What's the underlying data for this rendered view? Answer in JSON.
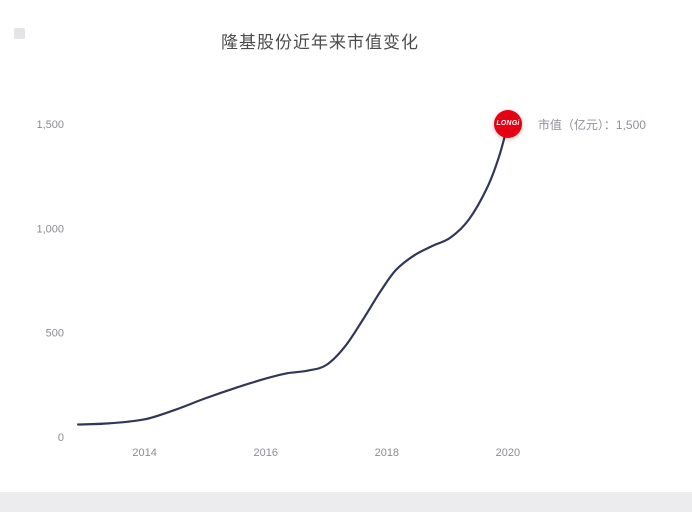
{
  "page": {
    "background": "#ffffff",
    "footer_strip_color": "#ececef"
  },
  "chart_data": {
    "type": "line",
    "title": "隆基股份近年来市值变化",
    "series_name": "市值（亿元）",
    "x": [
      2012.9,
      2013.4,
      2014.0,
      2014.5,
      2015.0,
      2015.5,
      2016.0,
      2016.35,
      2016.7,
      2017.0,
      2017.3,
      2017.6,
      2017.9,
      2018.15,
      2018.45,
      2018.75,
      2019.05,
      2019.35,
      2019.65,
      2019.85,
      2020.0
    ],
    "values": [
      60,
      65,
      85,
      130,
      185,
      235,
      280,
      305,
      318,
      345,
      430,
      560,
      700,
      800,
      870,
      915,
      955,
      1040,
      1190,
      1340,
      1500
    ],
    "final_value": 1500,
    "xlabel": "",
    "ylabel": "",
    "xlim": [
      2012.8,
      2022.0
    ],
    "ylim": [
      0,
      1600
    ],
    "grid": false,
    "legend": "none",
    "line_color": "#32375a",
    "x_ticks": [
      {
        "value": 2014,
        "label": "2014"
      },
      {
        "value": 2016,
        "label": "2016"
      },
      {
        "value": 2018,
        "label": "2018"
      },
      {
        "value": 2020,
        "label": "2020"
      }
    ],
    "y_ticks": [
      {
        "value": 0,
        "label": "0"
      },
      {
        "value": 500,
        "label": "500"
      },
      {
        "value": 1000,
        "label": "1,000"
      },
      {
        "value": 1500,
        "label": "1,500"
      }
    ]
  },
  "annotation": {
    "label": "市值（亿元）：1,500",
    "marker_text": "LONGi",
    "marker_color": "#e60012"
  },
  "styles": {
    "title_color": "#4c4c4c",
    "tick_color": "#8b8b93",
    "annotation_color": "#90909a"
  }
}
